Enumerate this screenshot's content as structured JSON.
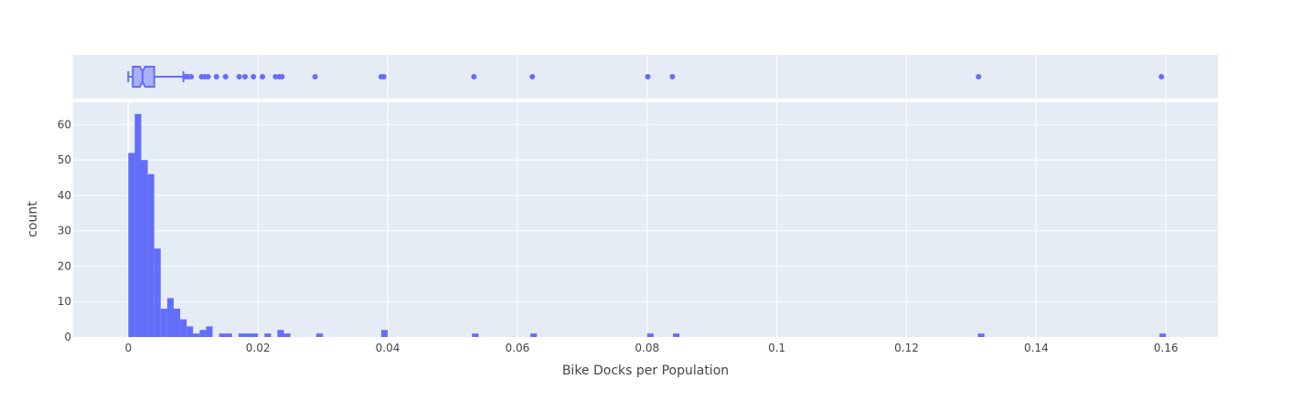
{
  "chart_data": {
    "type": "histogram",
    "xlabel": "Bike Docks per Population",
    "ylabel": "count",
    "xlim": [
      -0.0085,
      0.168
    ],
    "ylim": [
      0,
      66.3
    ],
    "bin_width": 0.001,
    "x_ticks": [
      "0",
      "0.02",
      "0.04",
      "0.06",
      "0.08",
      "0.1",
      "0.12",
      "0.14",
      "0.16"
    ],
    "x_tick_values": [
      0,
      0.02,
      0.04,
      0.06,
      0.08,
      0.1,
      0.12,
      0.14,
      0.16
    ],
    "y_ticks": [
      "0",
      "10",
      "20",
      "30",
      "40",
      "50",
      "60"
    ],
    "y_tick_values": [
      0,
      10,
      20,
      30,
      40,
      50,
      60
    ],
    "bins": [
      {
        "x0": 0.0,
        "count": 52
      },
      {
        "x0": 0.001,
        "count": 63
      },
      {
        "x0": 0.002,
        "count": 50
      },
      {
        "x0": 0.003,
        "count": 46
      },
      {
        "x0": 0.004,
        "count": 25
      },
      {
        "x0": 0.005,
        "count": 8
      },
      {
        "x0": 0.006,
        "count": 11
      },
      {
        "x0": 0.007,
        "count": 8
      },
      {
        "x0": 0.008,
        "count": 5
      },
      {
        "x0": 0.009,
        "count": 3
      },
      {
        "x0": 0.01,
        "count": 1
      },
      {
        "x0": 0.011,
        "count": 2
      },
      {
        "x0": 0.012,
        "count": 3
      },
      {
        "x0": 0.014,
        "count": 1
      },
      {
        "x0": 0.015,
        "count": 1
      },
      {
        "x0": 0.017,
        "count": 1
      },
      {
        "x0": 0.018,
        "count": 1
      },
      {
        "x0": 0.019,
        "count": 1
      },
      {
        "x0": 0.021,
        "count": 1
      },
      {
        "x0": 0.023,
        "count": 2
      },
      {
        "x0": 0.024,
        "count": 1
      },
      {
        "x0": 0.029,
        "count": 1
      },
      {
        "x0": 0.039,
        "count": 2
      },
      {
        "x0": 0.053,
        "count": 1
      },
      {
        "x0": 0.062,
        "count": 1
      },
      {
        "x0": 0.08,
        "count": 1
      },
      {
        "x0": 0.084,
        "count": 1
      },
      {
        "x0": 0.131,
        "count": 1
      },
      {
        "x0": 0.159,
        "count": 1
      }
    ],
    "marginal_box": {
      "min": 0.0,
      "q1": 0.0007,
      "notch_low": 0.0018,
      "median": 0.0022,
      "notch_high": 0.0026,
      "q3": 0.004,
      "upper_fence": 0.0085,
      "outliers": [
        0.0088,
        0.0092,
        0.0097,
        0.0113,
        0.0118,
        0.0123,
        0.0136,
        0.015,
        0.0171,
        0.018,
        0.0193,
        0.0207,
        0.0227,
        0.0233,
        0.0237,
        0.0288,
        0.039,
        0.0394,
        0.0533,
        0.0623,
        0.0801,
        0.0839,
        0.1311,
        0.1593
      ]
    },
    "grid": true,
    "colors": {
      "bar": "#636efa",
      "box_fill": "#aab0fc",
      "plot_bg": "#e5ecf6",
      "grid": "#ffffff",
      "text": "#444444"
    }
  }
}
